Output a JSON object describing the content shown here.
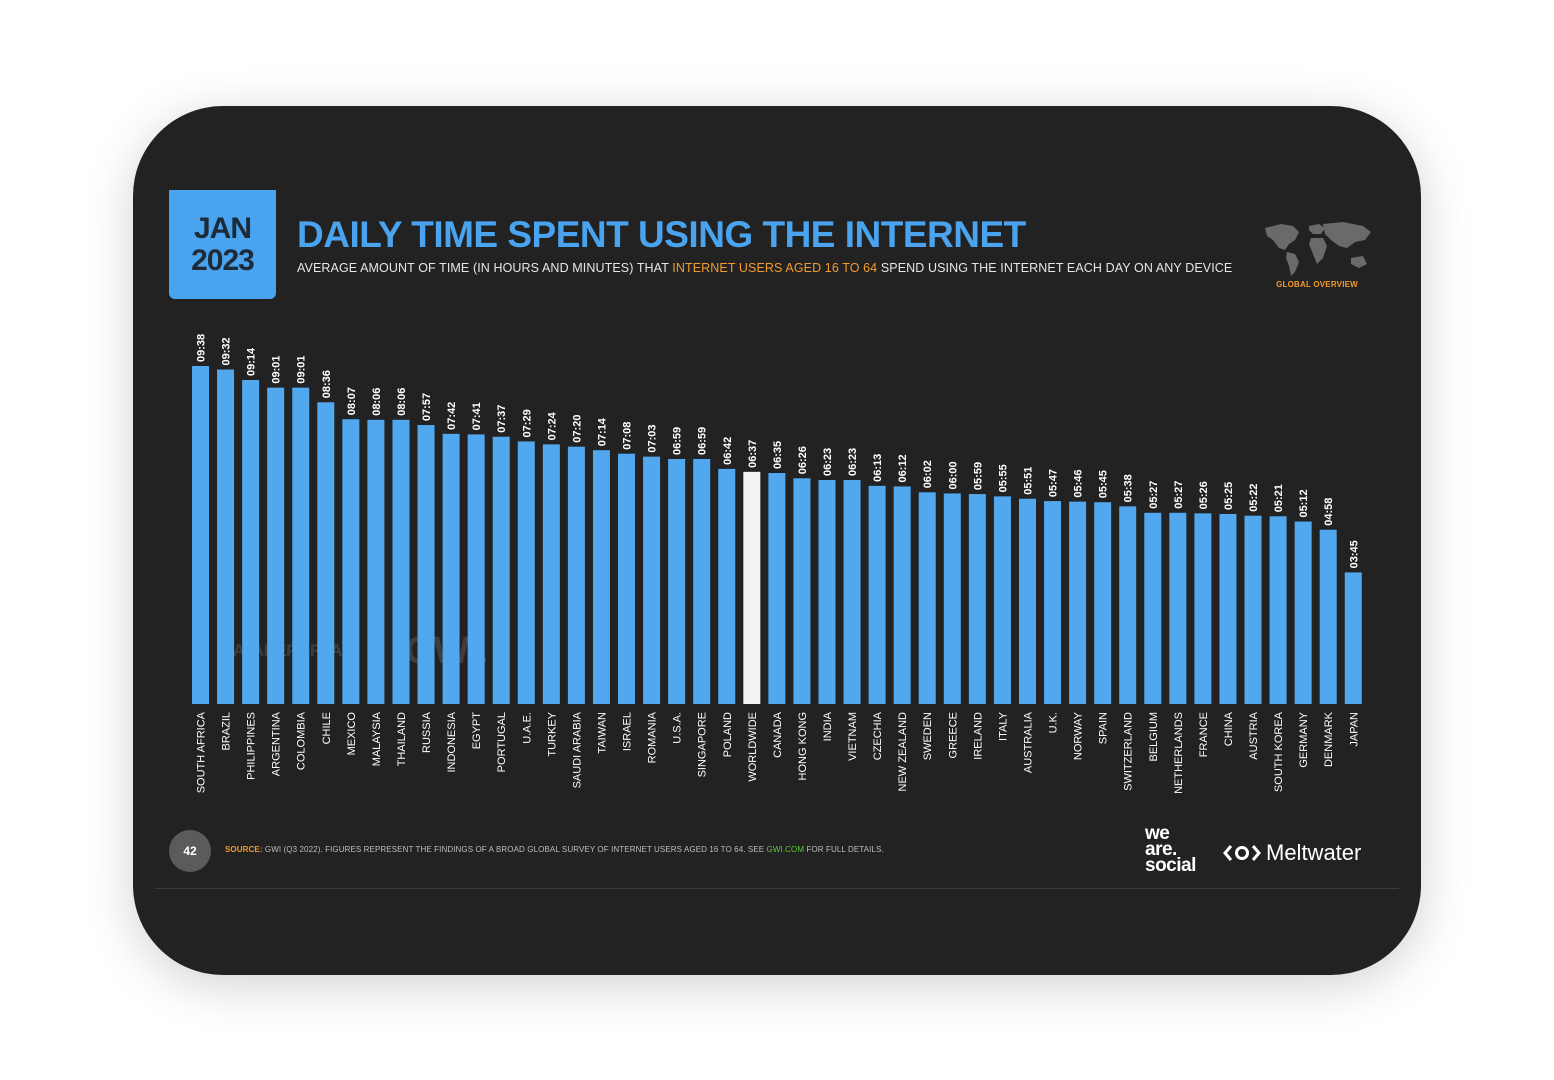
{
  "header": {
    "month": "JAN",
    "year": "2023",
    "title": "DAILY TIME SPENT USING THE INTERNET",
    "subtitle_pre": "AVERAGE AMOUNT OF TIME (IN HOURS AND MINUTES) THAT ",
    "subtitle_highlight": "INTERNET USERS AGED 16 TO 64",
    "subtitle_post": " SPEND USING THE INTERNET EACH DAY ON ANY DEVICE",
    "badge": "GLOBAL OVERVIEW"
  },
  "watermarks": {
    "datareportal": "DATAREPORTAL",
    "gwi": "GWI."
  },
  "chart_data": {
    "type": "bar",
    "categories": [
      "SOUTH AFRICA",
      "BRAZIL",
      "PHILIPPINES",
      "ARGENTINA",
      "COLOMBIA",
      "CHILE",
      "MEXICO",
      "MALAYSIA",
      "THAILAND",
      "RUSSIA",
      "INDONESIA",
      "EGYPT",
      "PORTUGAL",
      "U.A.E.",
      "TURKEY",
      "SAUDI ARABIA",
      "TAIWAN",
      "ISRAEL",
      "ROMANIA",
      "U.S.A.",
      "SINGAPORE",
      "POLAND",
      "WORLDWIDE",
      "CANADA",
      "HONG KONG",
      "INDIA",
      "VIETNAM",
      "CZECHIA",
      "NEW ZEALAND",
      "SWEDEN",
      "GREECE",
      "IRELAND",
      "ITALY",
      "AUSTRALIA",
      "U.K.",
      "NORWAY",
      "SPAIN",
      "SWITZERLAND",
      "BELGIUM",
      "NETHERLANDS",
      "FRANCE",
      "CHINA",
      "AUSTRIA",
      "SOUTH KOREA",
      "GERMANY",
      "DENMARK",
      "JAPAN"
    ],
    "labels": [
      "09:38",
      "09:32",
      "09:14",
      "09:01",
      "09:01",
      "08:36",
      "08:07",
      "08:06",
      "08:06",
      "07:57",
      "07:42",
      "07:41",
      "07:37",
      "07:29",
      "07:24",
      "07:20",
      "07:14",
      "07:08",
      "07:03",
      "06:59",
      "06:59",
      "06:42",
      "06:37",
      "06:35",
      "06:26",
      "06:23",
      "06:23",
      "06:13",
      "06:12",
      "06:02",
      "06:00",
      "05:59",
      "05:55",
      "05:51",
      "05:47",
      "05:46",
      "05:45",
      "05:38",
      "05:27",
      "05:27",
      "05:26",
      "05:25",
      "05:22",
      "05:21",
      "05:12",
      "04:58",
      "03:45"
    ],
    "values": [
      578,
      572,
      554,
      541,
      541,
      516,
      487,
      486,
      486,
      477,
      462,
      461,
      457,
      449,
      444,
      440,
      434,
      428,
      423,
      419,
      419,
      402,
      397,
      395,
      386,
      383,
      383,
      373,
      372,
      362,
      360,
      359,
      355,
      351,
      347,
      346,
      345,
      338,
      327,
      327,
      326,
      325,
      322,
      321,
      312,
      298,
      225
    ],
    "highlight": "WORLDWIDE",
    "ylim": [
      0,
      578
    ],
    "colors": {
      "bar": "#52a8ef",
      "highlight": "#f2f2f2"
    }
  },
  "footer": {
    "page": "42",
    "source_label": "SOURCE:",
    "source_text": " GWI (Q3 2022). FIGURES REPRESENT THE FINDINGS OF A BROAD GLOBAL SURVEY OF INTERNET USERS AGED 16 TO 64. SEE ",
    "source_link": "GWI.COM",
    "source_tail": " FOR FULL DETAILS.",
    "logo1": [
      "we",
      "are.",
      "social"
    ],
    "logo2": "Meltwater"
  }
}
